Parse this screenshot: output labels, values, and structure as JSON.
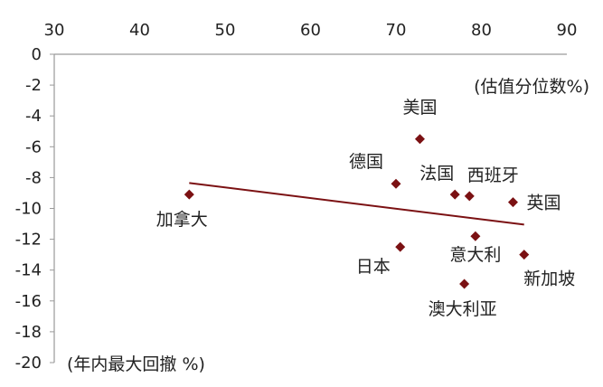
{
  "chart_data": {
    "type": "scatter",
    "title": "",
    "xlabel": "(估值分位数%)",
    "ylabel": "(年内最大回撤 %)",
    "xlim": [
      30,
      90
    ],
    "ylim": [
      -20,
      0
    ],
    "x_ticks": [
      "30",
      "40",
      "50",
      "60",
      "70",
      "80",
      "90"
    ],
    "y_ticks": [
      "0",
      "-2",
      "-4",
      "-6",
      "-8",
      "-10",
      "-12",
      "-14",
      "-16",
      "-18",
      "-20"
    ],
    "x_axis_position": "top",
    "grid": false,
    "marker_color": "#7b1113",
    "line_color": "#7b1113",
    "points": [
      {
        "label": "美国",
        "x": 72.8,
        "y": -5.5
      },
      {
        "label": "德国",
        "x": 70.0,
        "y": -8.4
      },
      {
        "label": "法国",
        "x": 76.9,
        "y": -9.1
      },
      {
        "label": "西班牙",
        "x": 78.6,
        "y": -9.2
      },
      {
        "label": "英国",
        "x": 83.7,
        "y": -9.6
      },
      {
        "label": "加拿大",
        "x": 45.8,
        "y": -9.1
      },
      {
        "label": "日本",
        "x": 70.5,
        "y": -12.5
      },
      {
        "label": "意大利",
        "x": 79.3,
        "y": -11.8
      },
      {
        "label": "新加坡",
        "x": 85.0,
        "y": -13.0
      },
      {
        "label": "澳大利亚",
        "x": 78.0,
        "y": -14.9
      }
    ],
    "trendline": {
      "type": "linear",
      "x": [
        45.8,
        85.0
      ],
      "y": [
        -8.35,
        -11.05
      ]
    }
  }
}
